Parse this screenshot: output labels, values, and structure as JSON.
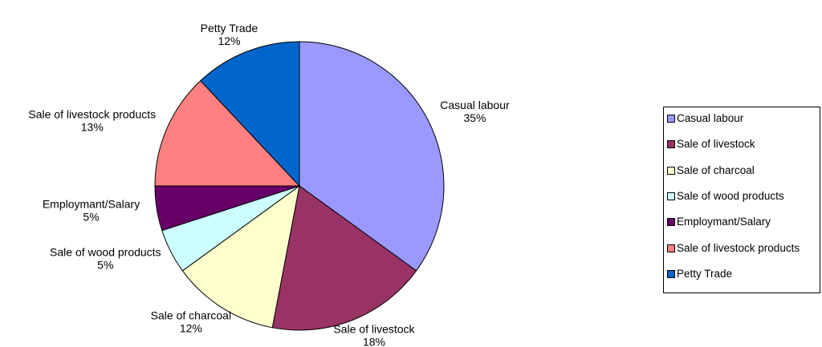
{
  "chart_data": {
    "type": "pie",
    "categories": [
      "Casual labour",
      "Sale of livestock",
      "Sale of charcoal",
      "Sale of wood products",
      "Employmant/Salary",
      "Sale of livestock products",
      "Petty Trade"
    ],
    "values": [
      35,
      18,
      12,
      5,
      5,
      13,
      12
    ],
    "value_labels": [
      "35%",
      "18%",
      "12%",
      "5%",
      "5%",
      "13%",
      "12%"
    ],
    "colors": [
      "#9999ff",
      "#993366",
      "#ffffcc",
      "#ccffff",
      "#660066",
      "#ff8080",
      "#0066cc"
    ],
    "legend": "right"
  }
}
